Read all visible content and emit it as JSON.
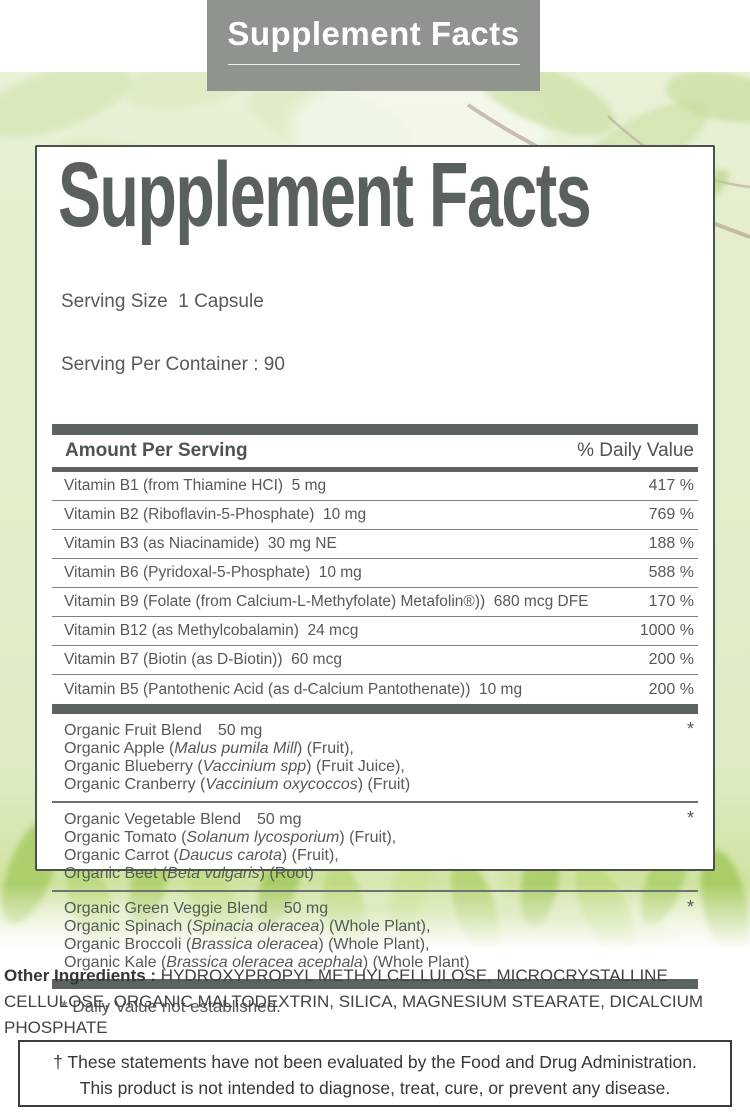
{
  "banner": {
    "title": "Supplement Facts"
  },
  "panel": {
    "title": "Supplement Facts",
    "serving_size": "Serving Size  1 Capsule",
    "servings_per_container": "Serving Per Container : 90",
    "table": {
      "header_left": "Amount Per Serving",
      "header_right": "% Daily Value",
      "rows": [
        {
          "name": "Vitamin B1 (from Thiamine HCI)  5 mg",
          "dv": "417 %"
        },
        {
          "name": "Vitamin B2 (Riboflavin-5-Phosphate)  10 mg",
          "dv": "769 %"
        },
        {
          "name": "Vitamin B3 (as Niacinamide)  30 mg NE",
          "dv": "188 %"
        },
        {
          "name": "Vitamin B6 (Pyridoxal-5-Phosphate)  10 mg",
          "dv": "588 %"
        },
        {
          "name": "Vitamin B9 (Folate (from Calcium-L-Methyfolate) Metafolin®))  680 mcg DFE",
          "dv": "170 %"
        },
        {
          "name": "Vitamin B12 (as Methylcobalamin)  24 mcg",
          "dv": "1000 %"
        },
        {
          "name": "Vitamin B7 (Biotin (as D-Biotin))  60 mcg",
          "dv": "200 %"
        },
        {
          "name": "Vitamin B5 (Pantothenic Acid (as d-Calcium Pantothenate))  10 mg",
          "dv": "200 %"
        }
      ]
    },
    "blends": [
      {
        "name": "Organic Fruit Blend",
        "amount": "50 mg",
        "dv": "*",
        "ingredients": [
          {
            "prefix": "Organic Apple (",
            "italic": "Malus pumila Mill",
            "suffix": ") (Fruit),"
          },
          {
            "prefix": "Organic Blueberry (",
            "italic": "Vaccinium spp",
            "suffix": ") (Fruit Juice),"
          },
          {
            "prefix": "Organic Cranberry (",
            "italic": "Vaccinium oxycoccos",
            "suffix": ") (Fruit)"
          }
        ]
      },
      {
        "name": "Organic Vegetable Blend",
        "amount": "50 mg",
        "dv": "*",
        "ingredients": [
          {
            "prefix": "Organic Tomato (",
            "italic": "Solanum lycosporium",
            "suffix": ") (Fruit),"
          },
          {
            "prefix": "Organic Carrot (",
            "italic": "Daucus carota",
            "suffix": ") (Fruit),"
          },
          {
            "prefix": "Organic Beet (",
            "italic": "Beta vulgaris",
            "suffix": ") (Root)"
          }
        ]
      },
      {
        "name": "Organic Green Veggie Blend",
        "amount": "50 mg",
        "dv": "*",
        "ingredients": [
          {
            "prefix": "Organic Spinach (",
            "italic": "Spinacia oleracea",
            "suffix": ") (Whole Plant),"
          },
          {
            "prefix": "Organic Broccoli (",
            "italic": "Brassica oleracea",
            "suffix": ") (Whole Plant),"
          },
          {
            "prefix": "Organic Kale (",
            "italic": "Brassica oleracea acephala",
            "suffix": ") (Whole Plant)"
          }
        ]
      }
    ],
    "footnote": "* Daily Value not established."
  },
  "other_ingredients": {
    "label": "Other Ingredients :",
    "text": " HYDROXYPROPYL METHYLCELLULOSE, MICROCRYSTALLINE CELLULOSE, ORGANIC MALTODEXTRIN, SILICA, MAGNESIUM STEARATE, DICALCIUM PHOSPHATE"
  },
  "disclaimer": {
    "line1": "† These statements have not been evaluated by the Food and Drug Administration.",
    "line2": "This product is not intended to diagnose, treat, cure, or prevent any disease."
  },
  "colors": {
    "banner_bg": "#8f948f",
    "heading_gray": "#5a605c",
    "body_text": "#545a57",
    "bar_gray": "#5c625e",
    "panel_border": "#4b514d",
    "disclaimer_border": "#383e3b",
    "leaf_green_light": "#e3eecd",
    "leaf_green_strong": "#aecf67"
  }
}
